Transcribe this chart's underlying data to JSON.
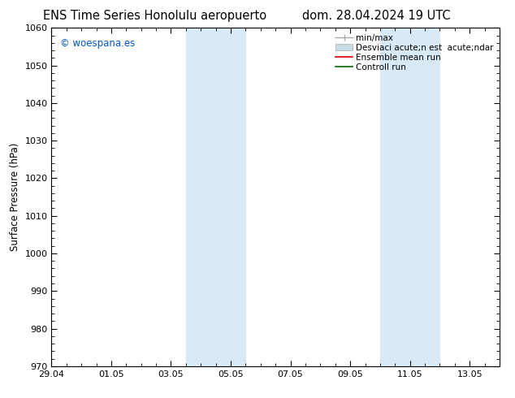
{
  "title_left": "ENS Time Series Honolulu aeropuerto",
  "title_right": "dom. 28.04.2024 19 UTC",
  "ylabel": "Surface Pressure (hPa)",
  "ylim": [
    970,
    1060
  ],
  "yticks": [
    970,
    980,
    990,
    1000,
    1010,
    1020,
    1030,
    1040,
    1050,
    1060
  ],
  "xlim": [
    0,
    15
  ],
  "xtick_labels": [
    "29.04",
    "01.05",
    "03.05",
    "05.05",
    "07.05",
    "09.05",
    "11.05",
    "13.05"
  ],
  "xtick_positions": [
    0,
    2,
    4,
    6,
    8,
    10,
    12,
    14
  ],
  "shaded_regions": [
    {
      "x_start": 4.5,
      "x_end": 6.5,
      "color": "#d8eaf8"
    },
    {
      "x_start": 11.0,
      "x_end": 13.0,
      "color": "#d8eaf8"
    }
  ],
  "watermark_text": "© woespana.es",
  "watermark_color": "#0055cc",
  "legend_labels": [
    "min/max",
    "Desviaci acute;n est  acute;ndar",
    "Ensemble mean run",
    "Controll run"
  ],
  "legend_colors": [
    "#aaaaaa",
    "#c8dde8",
    "#cc0000",
    "#006600"
  ],
  "bg_color": "#ffffff",
  "plot_bg_color": "#ffffff",
  "tick_color": "#000000",
  "title_fontsize": 10.5,
  "tick_fontsize": 8,
  "ylabel_fontsize": 8.5,
  "legend_fontsize": 7.5,
  "watermark_fontsize": 8.5
}
